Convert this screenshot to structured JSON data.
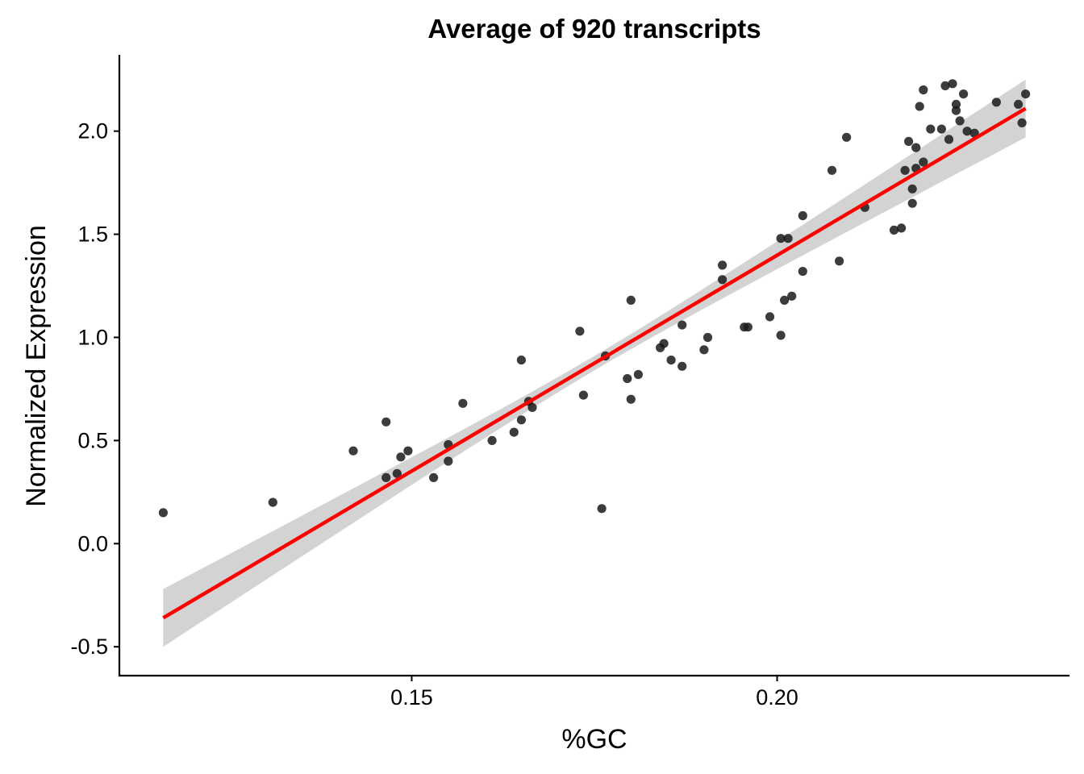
{
  "chart_data": {
    "type": "scatter",
    "title": "Average of 920 transcripts",
    "xlabel": "%GC",
    "ylabel": "Normalized Expression",
    "xlim": [
      0.11,
      0.24
    ],
    "ylim": [
      -0.64,
      2.37
    ],
    "x_ticks": [
      0.15,
      0.2
    ],
    "x_tick_labels": [
      "0.15",
      "0.20"
    ],
    "y_ticks": [
      -0.5,
      0.0,
      0.5,
      1.0,
      1.5,
      2.0
    ],
    "y_tick_labels": [
      "-0.5",
      "0.0",
      "0.5",
      "1.0",
      "1.5",
      "2.0"
    ],
    "grid": false,
    "colors": {
      "points": "#1a1a1a",
      "fit_line": "#ff0000",
      "confidence_band": "#d3d3d3"
    },
    "fit": {
      "method": "linear",
      "x": [
        0.116,
        0.234
      ],
      "y": [
        -0.36,
        2.11
      ],
      "ci_half_width_at_ends": 0.14,
      "ci_half_width_at_center": 0.035
    },
    "points": [
      [
        0.116,
        0.15
      ],
      [
        0.131,
        0.2
      ],
      [
        0.142,
        0.45
      ],
      [
        0.1465,
        0.59
      ],
      [
        0.1465,
        0.32
      ],
      [
        0.148,
        0.34
      ],
      [
        0.1485,
        0.42
      ],
      [
        0.1495,
        0.45
      ],
      [
        0.153,
        0.32
      ],
      [
        0.155,
        0.48
      ],
      [
        0.155,
        0.4
      ],
      [
        0.157,
        0.68
      ],
      [
        0.161,
        0.5
      ],
      [
        0.164,
        0.54
      ],
      [
        0.165,
        0.89
      ],
      [
        0.165,
        0.6
      ],
      [
        0.166,
        0.69
      ],
      [
        0.1665,
        0.66
      ],
      [
        0.173,
        1.03
      ],
      [
        0.1735,
        0.72
      ],
      [
        0.176,
        0.17
      ],
      [
        0.1765,
        0.91
      ],
      [
        0.1795,
        0.8
      ],
      [
        0.18,
        1.18
      ],
      [
        0.18,
        0.7
      ],
      [
        0.181,
        0.82
      ],
      [
        0.184,
        0.95
      ],
      [
        0.1845,
        0.97
      ],
      [
        0.1855,
        0.89
      ],
      [
        0.187,
        0.86
      ],
      [
        0.187,
        1.06
      ],
      [
        0.19,
        0.94
      ],
      [
        0.1905,
        1.0
      ],
      [
        0.1925,
        1.35
      ],
      [
        0.1925,
        1.28
      ],
      [
        0.1955,
        1.05
      ],
      [
        0.196,
        1.05
      ],
      [
        0.199,
        1.1
      ],
      [
        0.2005,
        1.48
      ],
      [
        0.2005,
        1.01
      ],
      [
        0.201,
        1.18
      ],
      [
        0.2015,
        1.48
      ],
      [
        0.202,
        1.2
      ],
      [
        0.2035,
        1.59
      ],
      [
        0.2035,
        1.32
      ],
      [
        0.2075,
        1.81
      ],
      [
        0.2085,
        1.37
      ],
      [
        0.2095,
        1.97
      ],
      [
        0.212,
        1.63
      ],
      [
        0.216,
        1.52
      ],
      [
        0.217,
        1.53
      ],
      [
        0.2175,
        1.81
      ],
      [
        0.218,
        1.95
      ],
      [
        0.2185,
        1.72
      ],
      [
        0.2185,
        1.65
      ],
      [
        0.219,
        1.82
      ],
      [
        0.219,
        1.92
      ],
      [
        0.2195,
        2.12
      ],
      [
        0.22,
        1.85
      ],
      [
        0.22,
        2.2
      ],
      [
        0.221,
        2.01
      ],
      [
        0.2225,
        2.01
      ],
      [
        0.223,
        2.22
      ],
      [
        0.2235,
        1.96
      ],
      [
        0.224,
        2.23
      ],
      [
        0.2245,
        2.13
      ],
      [
        0.2245,
        2.1
      ],
      [
        0.225,
        2.05
      ],
      [
        0.2255,
        2.18
      ],
      [
        0.226,
        2.0
      ],
      [
        0.227,
        1.99
      ],
      [
        0.23,
        2.14
      ],
      [
        0.233,
        2.13
      ],
      [
        0.2335,
        2.04
      ],
      [
        0.234,
        2.18
      ]
    ]
  }
}
